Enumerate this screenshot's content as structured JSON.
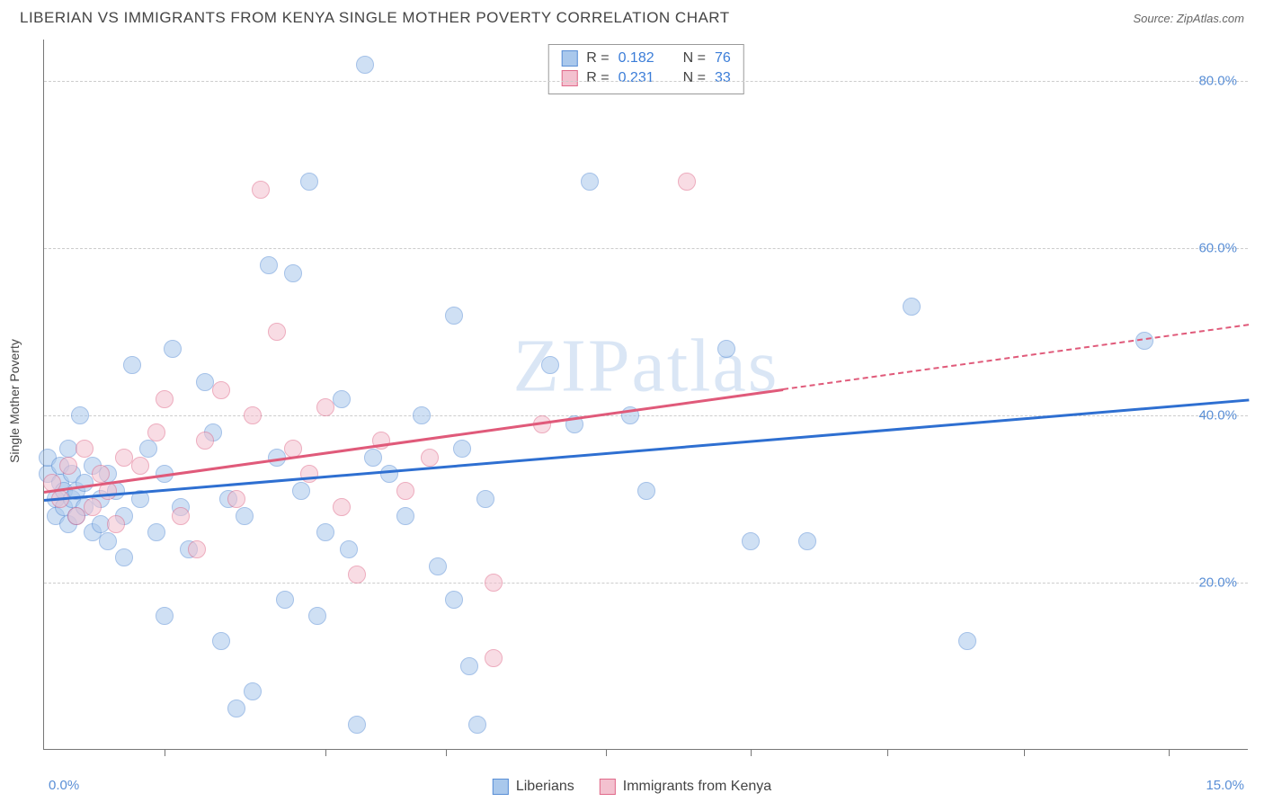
{
  "header": {
    "title": "LIBERIAN VS IMMIGRANTS FROM KENYA SINGLE MOTHER POVERTY CORRELATION CHART",
    "source_prefix": "Source: ",
    "source_name": "ZipAtlas.com"
  },
  "chart": {
    "type": "scatter",
    "ylabel": "Single Mother Poverty",
    "watermark": "ZIPatlas",
    "background_color": "#ffffff",
    "grid_color": "#cccccc",
    "axis_color": "#777777",
    "label_color": "#5a8fd6",
    "text_color": "#444444",
    "xlim": [
      0,
      15
    ],
    "ylim": [
      0,
      85
    ],
    "xticks": [
      1.5,
      3.5,
      5.0,
      7.0,
      8.8,
      10.5,
      12.2,
      14.0
    ],
    "yticks": [
      {
        "v": 20,
        "label": "20.0%"
      },
      {
        "v": 40,
        "label": "40.0%"
      },
      {
        "v": 60,
        "label": "60.0%"
      },
      {
        "v": 80,
        "label": "80.0%"
      }
    ],
    "x_start_label": "0.0%",
    "x_end_label": "15.0%",
    "marker_radius": 10,
    "marker_opacity": 0.55,
    "series": {
      "a": {
        "name": "Liberians",
        "fill": "#a9c8ec",
        "stroke": "#5a8fd6",
        "r_value": "0.182",
        "n_value": "76",
        "trend": {
          "color": "#2e6fd1",
          "y_at_x0": 30,
          "y_at_x15": 42,
          "solid_until_x": 15
        },
        "points": [
          [
            0.05,
            33
          ],
          [
            0.05,
            35
          ],
          [
            0.15,
            30
          ],
          [
            0.15,
            28
          ],
          [
            0.2,
            32
          ],
          [
            0.2,
            34
          ],
          [
            0.25,
            29
          ],
          [
            0.25,
            31
          ],
          [
            0.3,
            27
          ],
          [
            0.3,
            36
          ],
          [
            0.35,
            30
          ],
          [
            0.35,
            33
          ],
          [
            0.4,
            28
          ],
          [
            0.4,
            31
          ],
          [
            0.45,
            40
          ],
          [
            0.5,
            29
          ],
          [
            0.5,
            32
          ],
          [
            0.6,
            26
          ],
          [
            0.6,
            34
          ],
          [
            0.7,
            30
          ],
          [
            0.7,
            27
          ],
          [
            0.8,
            25
          ],
          [
            0.8,
            33
          ],
          [
            0.9,
            31
          ],
          [
            1.0,
            28
          ],
          [
            1.0,
            23
          ],
          [
            1.1,
            46
          ],
          [
            1.2,
            30
          ],
          [
            1.3,
            36
          ],
          [
            1.4,
            26
          ],
          [
            1.5,
            16
          ],
          [
            1.5,
            33
          ],
          [
            1.6,
            48
          ],
          [
            1.7,
            29
          ],
          [
            1.8,
            24
          ],
          [
            2.0,
            44
          ],
          [
            2.1,
            38
          ],
          [
            2.2,
            13
          ],
          [
            2.3,
            30
          ],
          [
            2.5,
            28
          ],
          [
            2.6,
            7
          ],
          [
            2.8,
            58
          ],
          [
            2.9,
            35
          ],
          [
            3.0,
            18
          ],
          [
            3.1,
            57
          ],
          [
            3.2,
            31
          ],
          [
            3.3,
            68
          ],
          [
            3.5,
            26
          ],
          [
            3.7,
            42
          ],
          [
            3.8,
            24
          ],
          [
            3.9,
            3
          ],
          [
            4.0,
            82
          ],
          [
            4.1,
            35
          ],
          [
            4.3,
            33
          ],
          [
            4.5,
            28
          ],
          [
            4.7,
            40
          ],
          [
            4.9,
            22
          ],
          [
            5.1,
            18
          ],
          [
            5.1,
            52
          ],
          [
            5.2,
            36
          ],
          [
            5.3,
            10
          ],
          [
            5.4,
            3
          ],
          [
            5.5,
            30
          ],
          [
            6.3,
            46
          ],
          [
            6.6,
            39
          ],
          [
            6.8,
            68
          ],
          [
            7.3,
            40
          ],
          [
            7.5,
            31
          ],
          [
            8.5,
            48
          ],
          [
            8.8,
            25
          ],
          [
            9.5,
            25
          ],
          [
            10.8,
            53
          ],
          [
            11.5,
            13
          ],
          [
            13.7,
            49
          ],
          [
            3.4,
            16
          ],
          [
            2.4,
            5
          ]
        ]
      },
      "b": {
        "name": "Immigrants from Kenya",
        "fill": "#f3c1cf",
        "stroke": "#e06a8a",
        "r_value": "0.231",
        "n_value": "33",
        "trend": {
          "color": "#e05a7a",
          "y_at_x0": 31,
          "y_at_x15": 51,
          "solid_until_x": 9.2
        },
        "points": [
          [
            0.1,
            32
          ],
          [
            0.2,
            30
          ],
          [
            0.3,
            34
          ],
          [
            0.4,
            28
          ],
          [
            0.5,
            36
          ],
          [
            0.6,
            29
          ],
          [
            0.7,
            33
          ],
          [
            0.8,
            31
          ],
          [
            0.9,
            27
          ],
          [
            1.0,
            35
          ],
          [
            1.2,
            34
          ],
          [
            1.4,
            38
          ],
          [
            1.5,
            42
          ],
          [
            1.7,
            28
          ],
          [
            1.9,
            24
          ],
          [
            2.0,
            37
          ],
          [
            2.2,
            43
          ],
          [
            2.4,
            30
          ],
          [
            2.6,
            40
          ],
          [
            2.7,
            67
          ],
          [
            2.9,
            50
          ],
          [
            3.1,
            36
          ],
          [
            3.3,
            33
          ],
          [
            3.5,
            41
          ],
          [
            3.7,
            29
          ],
          [
            3.9,
            21
          ],
          [
            4.2,
            37
          ],
          [
            4.5,
            31
          ],
          [
            4.8,
            35
          ],
          [
            5.6,
            20
          ],
          [
            5.6,
            11
          ],
          [
            6.2,
            39
          ],
          [
            8.0,
            68
          ]
        ]
      }
    },
    "legend_top": {
      "r_label": "R =",
      "n_label": "N ="
    }
  }
}
